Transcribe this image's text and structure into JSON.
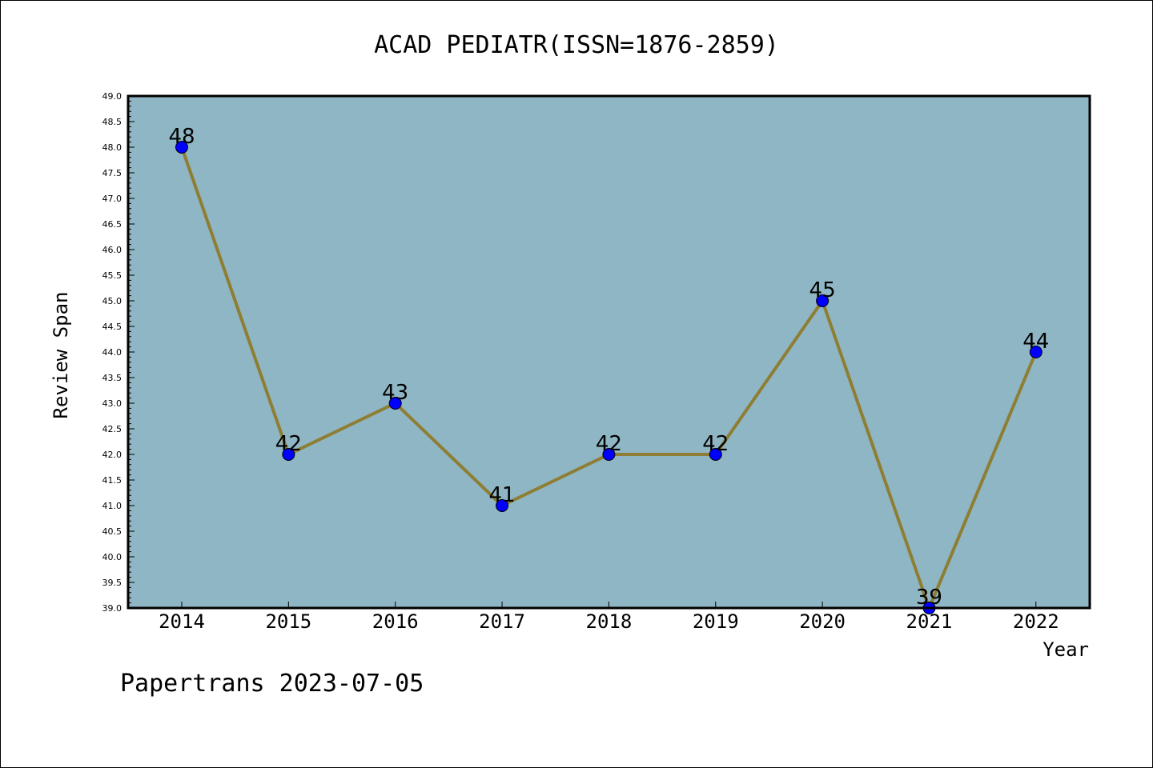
{
  "chart_data": {
    "type": "line",
    "title": "ACAD PEDIATR(ISSN=1876-2859)",
    "xlabel": "Year",
    "ylabel": "Review Span",
    "categories": [
      "2014",
      "2015",
      "2016",
      "2017",
      "2018",
      "2019",
      "2020",
      "2021",
      "2022"
    ],
    "values": [
      48,
      42,
      43,
      41,
      42,
      42,
      45,
      39,
      44
    ],
    "data_labels": [
      "48",
      "42",
      "43",
      "41",
      "42",
      "42",
      "45",
      "39",
      "44"
    ],
    "ylim": [
      39.0,
      49.0
    ],
    "ytick_step": 0.5,
    "yticks": [
      "39.0",
      "39.5",
      "40.0",
      "40.5",
      "41.0",
      "41.5",
      "42.0",
      "42.5",
      "43.0",
      "43.5",
      "44.0",
      "44.5",
      "45.0",
      "45.5",
      "46.0",
      "46.5",
      "47.0",
      "47.5",
      "48.0",
      "48.5",
      "49.0"
    ],
    "grid": false,
    "colors": {
      "plot_background": "#8fb6c4",
      "line": "#8e7e34",
      "marker": "#0000ff"
    }
  },
  "footer": {
    "text": "Papertrans 2023-07-05"
  }
}
